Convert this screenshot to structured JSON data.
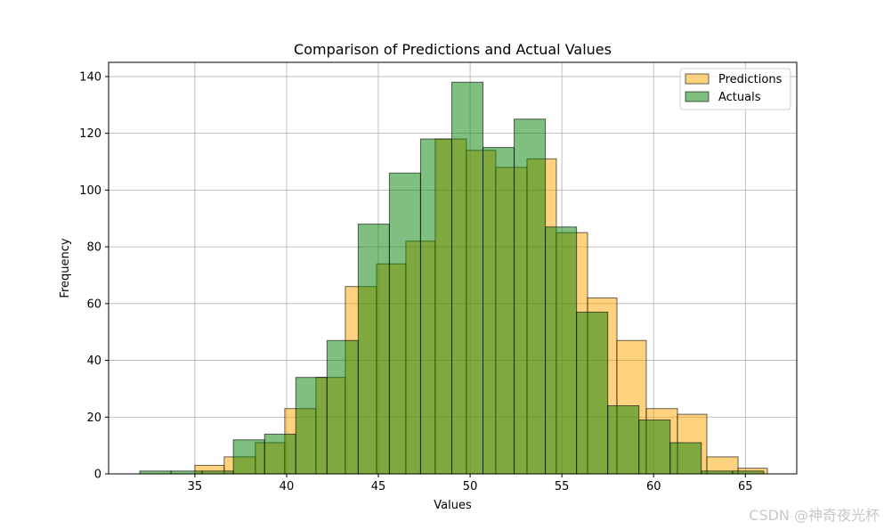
{
  "chart_data": {
    "type": "bar",
    "subtype": "overlapping-histogram",
    "title": "Comparison of Predictions and Actual Values",
    "xlabel": "Values",
    "ylabel": "Frequency",
    "xlim": [
      30.3,
      67.8
    ],
    "ylim": [
      0,
      145
    ],
    "xticks": [
      35,
      40,
      45,
      50,
      55,
      60,
      65
    ],
    "yticks": [
      0,
      20,
      40,
      60,
      80,
      100,
      120,
      140
    ],
    "grid": true,
    "legend_position": "top-right",
    "series": [
      {
        "name": "Predictions",
        "color": "#FFA500",
        "opacity": 0.5,
        "bins": [
          {
            "x0": 35.0,
            "x1": 36.6,
            "value": 3
          },
          {
            "x0": 36.6,
            "x1": 38.3,
            "value": 6
          },
          {
            "x0": 38.3,
            "x1": 39.9,
            "value": 11
          },
          {
            "x0": 39.9,
            "x1": 41.6,
            "value": 23
          },
          {
            "x0": 41.6,
            "x1": 43.2,
            "value": 34
          },
          {
            "x0": 43.2,
            "x1": 44.9,
            "value": 66
          },
          {
            "x0": 44.9,
            "x1": 46.5,
            "value": 74
          },
          {
            "x0": 46.5,
            "x1": 48.1,
            "value": 82
          },
          {
            "x0": 48.1,
            "x1": 49.8,
            "value": 118
          },
          {
            "x0": 49.8,
            "x1": 51.4,
            "value": 114
          },
          {
            "x0": 51.4,
            "x1": 53.1,
            "value": 108
          },
          {
            "x0": 53.1,
            "x1": 54.7,
            "value": 111
          },
          {
            "x0": 54.7,
            "x1": 56.4,
            "value": 85
          },
          {
            "x0": 56.4,
            "x1": 58.0,
            "value": 62
          },
          {
            "x0": 58.0,
            "x1": 59.6,
            "value": 47
          },
          {
            "x0": 59.6,
            "x1": 61.3,
            "value": 23
          },
          {
            "x0": 61.3,
            "x1": 62.9,
            "value": 21
          },
          {
            "x0": 62.9,
            "x1": 64.6,
            "value": 6
          },
          {
            "x0": 64.6,
            "x1": 66.2,
            "value": 2
          }
        ]
      },
      {
        "name": "Actuals",
        "color": "#008000",
        "opacity": 0.5,
        "bins": [
          {
            "x0": 32.0,
            "x1": 33.7,
            "value": 1
          },
          {
            "x0": 33.7,
            "x1": 35.4,
            "value": 1
          },
          {
            "x0": 35.4,
            "x1": 37.1,
            "value": 1
          },
          {
            "x0": 37.1,
            "x1": 38.8,
            "value": 12
          },
          {
            "x0": 38.8,
            "x1": 40.5,
            "value": 14
          },
          {
            "x0": 40.5,
            "x1": 42.2,
            "value": 34
          },
          {
            "x0": 42.2,
            "x1": 43.9,
            "value": 47
          },
          {
            "x0": 43.9,
            "x1": 45.6,
            "value": 88
          },
          {
            "x0": 45.6,
            "x1": 47.3,
            "value": 106
          },
          {
            "x0": 47.3,
            "x1": 49.0,
            "value": 118
          },
          {
            "x0": 49.0,
            "x1": 50.7,
            "value": 138
          },
          {
            "x0": 50.7,
            "x1": 52.4,
            "value": 115
          },
          {
            "x0": 52.4,
            "x1": 54.1,
            "value": 125
          },
          {
            "x0": 54.1,
            "x1": 55.8,
            "value": 87
          },
          {
            "x0": 55.8,
            "x1": 57.5,
            "value": 57
          },
          {
            "x0": 57.5,
            "x1": 59.2,
            "value": 24
          },
          {
            "x0": 59.2,
            "x1": 60.9,
            "value": 19
          },
          {
            "x0": 60.9,
            "x1": 62.6,
            "value": 11
          },
          {
            "x0": 62.6,
            "x1": 64.3,
            "value": 1
          },
          {
            "x0": 64.3,
            "x1": 66.0,
            "value": 1
          }
        ]
      }
    ]
  },
  "watermark": "CSDN @神奇夜光杯"
}
